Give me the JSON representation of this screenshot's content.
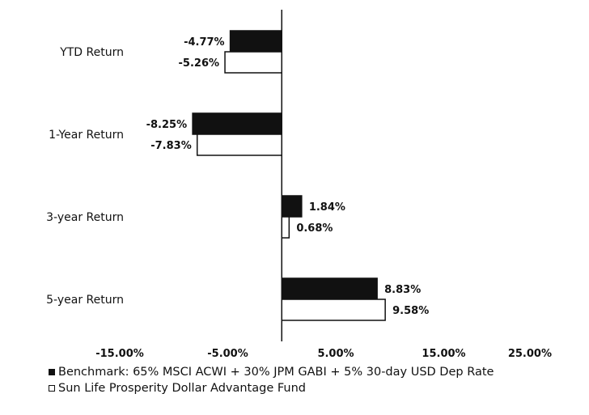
{
  "chart_data": {
    "type": "bar",
    "orientation": "horizontal",
    "categories": [
      "YTD Return",
      "1-Year Return",
      "3-year Return",
      "5-year Return"
    ],
    "series": [
      {
        "name": "Benchmark: 65% MSCI ACWI + 30% JPM GABI + 5% 30-day USD Dep Rate",
        "values": [
          -4.77,
          -8.25,
          1.84,
          8.83
        ],
        "labels": [
          "-4.77%",
          "-8.25%",
          "1.84%",
          "8.83%"
        ],
        "color": "#111111"
      },
      {
        "name": "Sun Life Prosperity Dollar Advantage Fund",
        "values": [
          -5.26,
          -7.83,
          0.68,
          9.58
        ],
        "labels": [
          "-5.26%",
          "-7.83%",
          "0.68%",
          "9.58%"
        ],
        "color": "#ffffff"
      }
    ],
    "xlim": [
      -15,
      25
    ],
    "xticks": [
      "-15.00%",
      "-5.00%",
      "5.00%",
      "15.00%",
      "25.00%"
    ],
    "xtick_values": [
      -15,
      -5,
      5,
      15,
      25
    ],
    "grid": false,
    "legend_position": "bottom-left"
  }
}
